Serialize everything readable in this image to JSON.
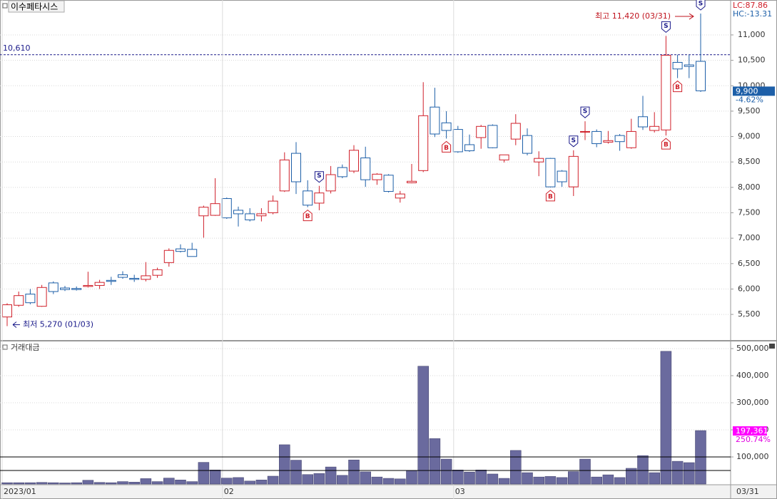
{
  "chart_data": [
    {
      "type": "candlestick",
      "title": "이수페타시스",
      "indicators": [
        "LC:87.86",
        "HC:-13.31"
      ],
      "up_color": "#d0202a",
      "down_color": "#1d5fa8",
      "open": [
        5450,
        5680,
        5900,
        5660,
        6120,
        6020,
        6010,
        6050,
        6070,
        6170,
        6280,
        6210,
        6190,
        6270,
        6520,
        6790,
        6780,
        7440,
        7450,
        7780,
        7550,
        7480,
        7440,
        7500,
        7930,
        8670,
        7930,
        7690,
        7930,
        8390,
        8320,
        8580,
        8150,
        8240,
        7790,
        8090,
        8330,
        9580,
        9270,
        9140,
        8840,
        8980,
        9220,
        8540,
        8950,
        9020,
        8500,
        8570,
        8320,
        8010,
        9090,
        9100,
        8890,
        9020,
        8780,
        9390,
        9120,
        9130,
        10460,
        10410,
        10480
      ],
      "high": [
        5720,
        5950,
        6000,
        6080,
        6150,
        6060,
        6050,
        6340,
        6180,
        6240,
        6350,
        6280,
        6530,
        6420,
        6800,
        6880,
        6910,
        7640,
        8180,
        7800,
        7620,
        7590,
        7590,
        7840,
        8690,
        8890,
        8140,
        8030,
        8420,
        8450,
        8830,
        8800,
        8280,
        8260,
        7930,
        8460,
        10070,
        9960,
        9500,
        9210,
        9040,
        9230,
        9240,
        8640,
        9440,
        9160,
        8710,
        8580,
        8340,
        8730,
        9300,
        9140,
        9110,
        9050,
        9350,
        9800,
        9480,
        10980,
        10610,
        10610,
        11420
      ],
      "low": [
        5270,
        5650,
        5700,
        5650,
        5900,
        5960,
        5970,
        6030,
        6000,
        6080,
        6200,
        6140,
        6150,
        6220,
        6440,
        6720,
        6640,
        7010,
        7440,
        7380,
        7230,
        7330,
        7330,
        7470,
        7910,
        7870,
        7610,
        7550,
        7880,
        8180,
        8280,
        8010,
        8050,
        7900,
        7700,
        8080,
        8300,
        8990,
        8960,
        8680,
        8700,
        8760,
        8770,
        8490,
        8830,
        8630,
        8220,
        8000,
        8010,
        7830,
        8930,
        8790,
        8860,
        8720,
        8760,
        9130,
        9080,
        9020,
        10150,
        10150,
        9880
      ],
      "close": [
        5690,
        5870,
        5730,
        6030,
        5950,
        5990,
        5990,
        6070,
        6130,
        6150,
        6230,
        6190,
        6260,
        6380,
        6760,
        6740,
        6640,
        7610,
        7680,
        7400,
        7480,
        7360,
        7480,
        7730,
        8540,
        8110,
        7650,
        7890,
        8250,
        8210,
        8730,
        8150,
        8260,
        7920,
        7870,
        8120,
        9410,
        9050,
        9120,
        8700,
        8720,
        9200,
        8780,
        8640,
        9260,
        8670,
        8570,
        8010,
        8110,
        8610,
        9100,
        8860,
        8920,
        8900,
        9100,
        9190,
        9200,
        10600,
        10330,
        10380,
        9900
      ],
      "markers": [
        {
          "index": 26,
          "label": "B"
        },
        {
          "index": 27,
          "label": "S"
        },
        {
          "index": 38,
          "label": "B"
        },
        {
          "index": 47,
          "label": "B"
        },
        {
          "index": 49,
          "label": "S"
        },
        {
          "index": 50,
          "label": "S"
        },
        {
          "index": 57,
          "label": "S"
        },
        {
          "index": 57,
          "label": "B"
        },
        {
          "index": 58,
          "label": "B"
        },
        {
          "index": 60,
          "label": "S"
        }
      ],
      "ylim": [
        4996,
        11687
      ],
      "yticks": [
        {
          "value": 5500,
          "label": "5,500"
        },
        {
          "value": 6000,
          "label": "6,000"
        },
        {
          "value": 6500,
          "label": "6,500"
        },
        {
          "value": 7000,
          "label": "7,000"
        },
        {
          "value": 7500,
          "label": "7,500"
        },
        {
          "value": 8000,
          "label": "8,000"
        },
        {
          "value": 8500,
          "label": "8,500"
        },
        {
          "value": 9000,
          "label": "9,000"
        },
        {
          "value": 9500,
          "label": "9,500"
        },
        {
          "value": 10000,
          "label": "10,000"
        },
        {
          "value": 10500,
          "label": "10,500"
        },
        {
          "value": 11000,
          "label": "11,000"
        }
      ],
      "ref_line": {
        "value": 10610,
        "label": "10,610"
      },
      "last_label": "9,900",
      "change_label": "-4.62%",
      "high_label": "최고 11,420 (03/31)",
      "low_label": "최저 5,270 (01/03)",
      "grid": true
    },
    {
      "type": "bar",
      "title": "거래대금",
      "color": "#6a6a9e",
      "categories": [
        "2023/01",
        null,
        null,
        null,
        null,
        null,
        null,
        null,
        null,
        null,
        null,
        null,
        null,
        null,
        null,
        null,
        null,
        null,
        null,
        "02",
        null,
        null,
        null,
        null,
        null,
        null,
        null,
        null,
        null,
        null,
        null,
        null,
        null,
        null,
        null,
        null,
        null,
        null,
        null,
        "03",
        null,
        null,
        null,
        null,
        null,
        null,
        null,
        null,
        null,
        null,
        null,
        null,
        null,
        null,
        null,
        null,
        null,
        null,
        null,
        null,
        null
      ],
      "end_label": "03/31",
      "values": [
        5000,
        5000,
        5000,
        6000,
        5000,
        4000,
        5000,
        14000,
        6000,
        5000,
        9000,
        7000,
        20000,
        9000,
        22000,
        15000,
        9000,
        80000,
        52000,
        22000,
        24000,
        11000,
        15000,
        29000,
        145000,
        88000,
        35000,
        39000,
        63000,
        32000,
        89000,
        45000,
        26000,
        21000,
        19000,
        49000,
        435000,
        168000,
        92000,
        52000,
        44000,
        52000,
        37000,
        21000,
        124000,
        42000,
        26000,
        28000,
        24000,
        46000,
        92000,
        26000,
        34000,
        24000,
        58000,
        105000,
        42000,
        490000,
        84000,
        79000,
        197361
      ],
      "ylim": [
        0,
        526316
      ],
      "yticks": [
        {
          "value": 100000,
          "label": "100,000"
        },
        {
          "value": 200000,
          "label": "200,000"
        },
        {
          "value": 300000,
          "label": "300,000"
        },
        {
          "value": 400000,
          "label": "400,000"
        },
        {
          "value": 500000,
          "label": "500,000"
        }
      ],
      "ref_lines": [
        100000,
        50000
      ],
      "last_label": "197,361",
      "change_label": "250.74%",
      "grid": true
    }
  ]
}
